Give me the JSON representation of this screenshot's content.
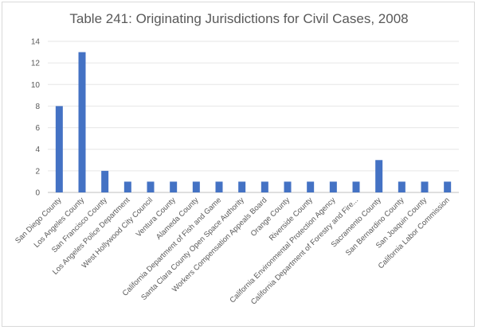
{
  "chart_data": {
    "type": "bar",
    "title": "Table 241: Originating Jurisdictions for Civil Cases, 2008",
    "xlabel": "",
    "ylabel": "",
    "ylim": [
      0,
      14
    ],
    "yticks": [
      0,
      2,
      4,
      6,
      8,
      10,
      12,
      14
    ],
    "grid": true,
    "legend": "none",
    "bar_color": "#4472c4",
    "categories": [
      "San Diego County",
      "Los Angeles County",
      "San Francisco County",
      "Los Angeles Police Department",
      "West Hollywood City Council",
      "Ventura County",
      "Alameda County",
      "California Department of Fish and Game",
      "Santa Clara County Open Space Authority",
      "Workers Compensation Appeals Board",
      "Orange County",
      "Riverside County",
      "California Environmental Protection Agency",
      "California Department of Forestry and Fire...",
      "Sacramento County",
      "San Bernardino County",
      "San Joaquin County",
      "California Labor Commission"
    ],
    "values": [
      8,
      13,
      2,
      1,
      1,
      1,
      1,
      1,
      1,
      1,
      1,
      1,
      1,
      1,
      3,
      1,
      1,
      1
    ]
  }
}
